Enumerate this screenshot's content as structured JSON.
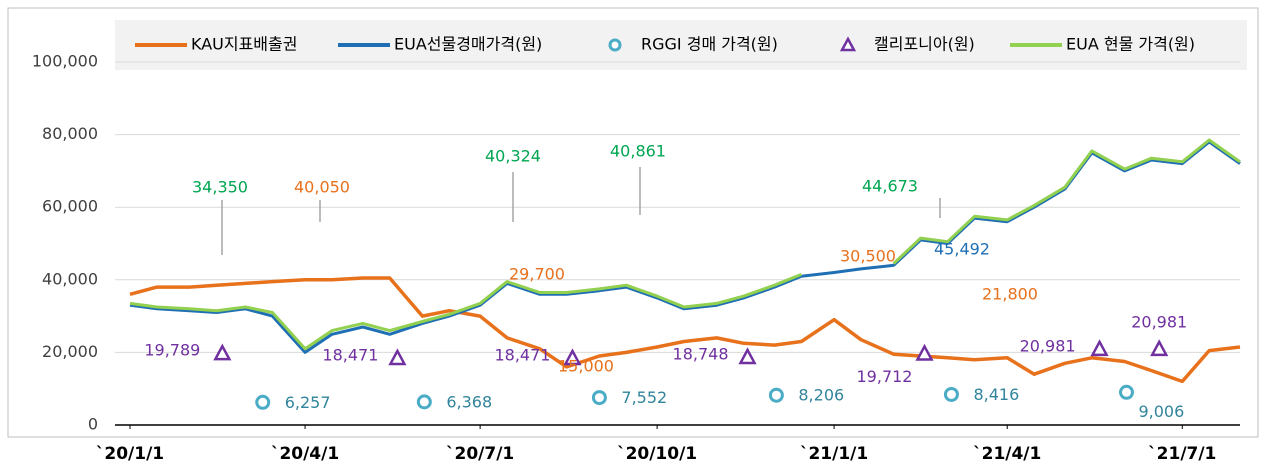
{
  "chart_data": {
    "type": "line",
    "x": [
      "2020-01-01",
      "2020-01-15",
      "2020-02-01",
      "2020-02-15",
      "2020-03-01",
      "2020-03-15",
      "2020-04-01",
      "2020-04-15",
      "2020-05-01",
      "2020-05-15",
      "2020-06-01",
      "2020-06-15",
      "2020-07-01",
      "2020-07-15",
      "2020-08-01",
      "2020-08-15",
      "2020-09-01",
      "2020-09-15",
      "2020-10-01",
      "2020-10-15",
      "2020-11-01",
      "2020-11-15",
      "2020-12-01",
      "2020-12-15",
      "2021-01-01",
      "2021-01-15",
      "2021-02-01",
      "2021-02-15",
      "2021-03-01",
      "2021-03-15",
      "2021-04-01",
      "2021-04-15",
      "2021-05-01",
      "2021-05-15",
      "2021-06-01",
      "2021-06-15",
      "2021-07-01",
      "2021-07-15",
      "2021-07-31"
    ],
    "series": [
      {
        "name": "KAU지표배출권",
        "color": "#e8711c",
        "values": [
          36000,
          38000,
          38000,
          38500,
          39000,
          39500,
          40000,
          40000,
          40500,
          40500,
          30000,
          31500,
          30000,
          24000,
          21000,
          16000,
          19000,
          20000,
          21500,
          23000,
          24000,
          22500,
          22000,
          23000,
          29000,
          23500,
          19500,
          19000,
          18500,
          18000,
          18500,
          14000,
          17000,
          18500,
          17500,
          15000,
          12000,
          20500,
          21500
        ]
      },
      {
        "name": "EUA선물경매가격(원)",
        "color": "#1f6fb4",
        "values": [
          33000,
          32000,
          31500,
          31000,
          32000,
          30000,
          20000,
          25000,
          27000,
          25000,
          28000,
          30000,
          33000,
          39000,
          36000,
          36000,
          37000,
          38000,
          35000,
          32000,
          33000,
          35000,
          38000,
          41000,
          42000,
          43000,
          44000,
          51000,
          50000,
          57000,
          56000,
          60000,
          65000,
          75000,
          70000,
          73000,
          72000,
          78000,
          72000
        ]
      },
      {
        "name": "RGGI 경매 가격(원)",
        "color": "#4bacc6",
        "marker": "circle",
        "x": [
          "2020-03-10",
          "2020-06-02",
          "2020-09-01",
          "2020-12-02",
          "2021-03-03",
          "2021-06-02"
        ],
        "values": [
          6257,
          6368,
          7552,
          8206,
          8416,
          9006
        ],
        "value_labels": [
          "6,257",
          "6,368",
          "7,552",
          "8,206",
          "8,416",
          "9,006"
        ]
      },
      {
        "name": "캘리포니아(원)",
        "color": "#7030a0",
        "marker": "triangle",
        "x": [
          "2020-02-18",
          "2020-05-19",
          "2020-08-18",
          "2020-11-17",
          "2021-02-17",
          "2021-05-19",
          "2021-06-19"
        ],
        "values": [
          19789,
          18471,
          18471,
          18748,
          19712,
          20981,
          20981
        ],
        "value_labels": [
          "19,789",
          "18,471",
          "18,471",
          "18,748",
          "19,712",
          "20,981",
          "20,981"
        ]
      },
      {
        "name": "EUA 현물 가격(원)",
        "color": "#92d050",
        "values": [
          33500,
          32500,
          32000,
          31500,
          32500,
          31000,
          21000,
          26000,
          28000,
          26000,
          28500,
          30500,
          33500,
          39500,
          36500,
          36500,
          37500,
          38500,
          35500,
          32500,
          33500,
          35500,
          38500,
          41500,
          null,
          null,
          44500,
          51500,
          50500,
          57500,
          56500,
          60500,
          65500,
          75500,
          70500,
          73500,
          72500,
          78500,
          72500
        ]
      }
    ],
    "annotations": [
      {
        "text": "34,350",
        "color": "#00a651"
      },
      {
        "text": "40,050",
        "color": "#e8711c"
      },
      {
        "text": "40,324",
        "color": "#00a651"
      },
      {
        "text": "40,861",
        "color": "#00a651"
      },
      {
        "text": "29,700",
        "color": "#e8711c"
      },
      {
        "text": "15,000",
        "color": "#e8711c"
      },
      {
        "text": "44,673",
        "color": "#00a651"
      },
      {
        "text": "30,500",
        "color": "#e8711c"
      },
      {
        "text": "45,492",
        "color": "#1f6fb4"
      },
      {
        "text": "21,800",
        "color": "#e8711c"
      }
    ],
    "xlim": [
      "2020-01-01",
      "2021-07-31"
    ],
    "xticks": [
      {
        "value": "2020-01-01",
        "label": "`20/1/1"
      },
      {
        "value": "2020-04-01",
        "label": "`20/4/1"
      },
      {
        "value": "2020-07-01",
        "label": "`20/7/1"
      },
      {
        "value": "2020-10-01",
        "label": "`20/10/1"
      },
      {
        "value": "2021-01-01",
        "label": "`21/1/1"
      },
      {
        "value": "2021-04-01",
        "label": "`21/4/1"
      },
      {
        "value": "2021-07-01",
        "label": "`21/7/1"
      }
    ],
    "ylim": [
      0,
      100000
    ],
    "yticks": [
      0,
      {
        "value": 20000,
        "label": "20,000"
      },
      {
        "value": 40000,
        "label": "40,000"
      },
      {
        "value": 60000,
        "label": "60,000"
      },
      {
        "value": 80000,
        "label": "80,000"
      },
      {
        "value": 100000,
        "label": "100,000"
      }
    ],
    "grid": true,
    "legend": "top"
  }
}
